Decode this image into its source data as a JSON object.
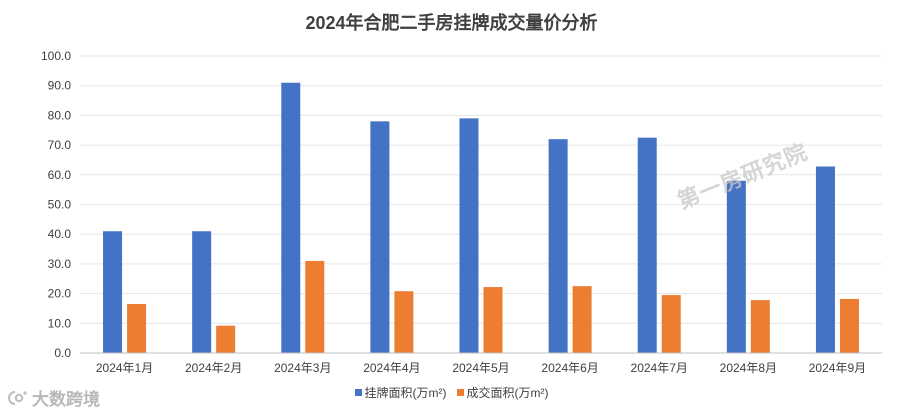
{
  "chart_data": {
    "type": "bar",
    "title": "2024年合肥二手房挂牌成交量价分析",
    "categories": [
      "2024年1月",
      "2024年2月",
      "2024年3月",
      "2024年4月",
      "2024年5月",
      "2024年6月",
      "2024年7月",
      "2024年8月",
      "2024年9月"
    ],
    "series": [
      {
        "name": "挂牌面积(万m²)",
        "color": "#4472c4",
        "values": [
          41.0,
          41.0,
          91.0,
          78.0,
          79.0,
          72.0,
          72.5,
          58.0,
          62.8
        ]
      },
      {
        "name": "成交面积(万m²)",
        "color": "#ed7d31",
        "values": [
          16.5,
          9.2,
          31.0,
          20.8,
          22.2,
          22.5,
          19.5,
          17.8,
          18.2
        ]
      }
    ],
    "ylim": [
      0,
      100
    ],
    "yticks": [
      "0.0",
      "10.0",
      "20.0",
      "30.0",
      "40.0",
      "50.0",
      "60.0",
      "70.0",
      "80.0",
      "90.0",
      "100.0"
    ],
    "grid": true,
    "legend_position": "bottom"
  },
  "watermark": "第一房研究院",
  "logo_text": "大数跨境"
}
